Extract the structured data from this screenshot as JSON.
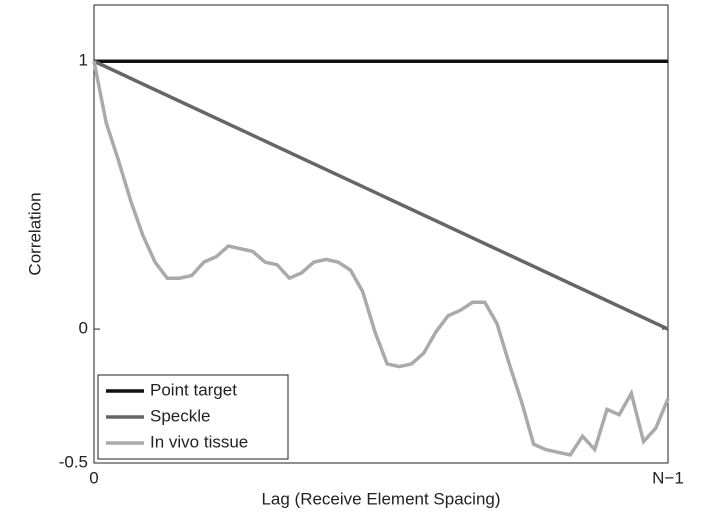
{
  "chart_data": {
    "type": "line",
    "xlabel": "Lag (Receive Element Spacing)",
    "ylabel": "Correlation",
    "xlim": [
      0,
      47
    ],
    "xticks": [
      0,
      {
        "value": 47,
        "label": "N−1"
      }
    ],
    "ylim": [
      -0.5,
      1.21
    ],
    "yticks": [
      -0.5,
      0,
      1
    ],
    "legend": "lower left",
    "series": [
      {
        "name": "Point target",
        "color": "#111111",
        "x": [
          0,
          47
        ],
        "values": [
          1,
          1
        ]
      },
      {
        "name": "Speckle",
        "color": "#666666",
        "x": [
          0,
          47
        ],
        "values": [
          1,
          0
        ]
      },
      {
        "name": "In vivo tissue",
        "color": "#aaaaaa",
        "x": [
          0,
          1,
          2,
          3,
          4,
          5,
          6,
          7,
          8,
          9,
          10,
          11,
          12,
          13,
          14,
          15,
          16,
          17,
          18,
          19,
          20,
          21,
          22,
          23,
          24,
          25,
          26,
          27,
          28,
          29,
          30,
          31,
          32,
          33,
          34,
          35,
          36,
          37,
          38,
          39,
          40,
          41,
          42,
          43,
          44,
          45,
          46,
          47
        ],
        "values": [
          1.0,
          0.77,
          0.63,
          0.48,
          0.35,
          0.25,
          0.19,
          0.19,
          0.2,
          0.25,
          0.27,
          0.31,
          0.3,
          0.29,
          0.25,
          0.24,
          0.19,
          0.21,
          0.25,
          0.26,
          0.25,
          0.22,
          0.14,
          -0.01,
          -0.13,
          -0.14,
          -0.13,
          -0.09,
          -0.01,
          0.05,
          0.07,
          0.1,
          0.1,
          0.02,
          -0.13,
          -0.27,
          -0.43,
          -0.45,
          -0.46,
          -0.47,
          -0.4,
          -0.45,
          -0.3,
          -0.32,
          -0.24,
          -0.42,
          -0.37,
          -0.26
        ]
      }
    ]
  }
}
